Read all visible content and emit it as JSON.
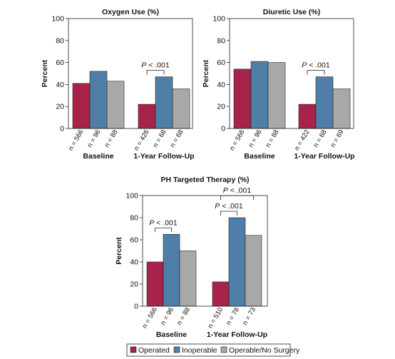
{
  "series_names": [
    "Operated",
    "Inoperable",
    "Operable/No Surgery"
  ],
  "colors": {
    "Operated": "#a8234a",
    "Inoperable": "#4f7fa6",
    "Operable/No Surgery": "#a8a8a8"
  },
  "legend": {
    "items": [
      "Operated",
      "Inoperable",
      "Operable/No Surgery"
    ]
  },
  "chart_data": [
    {
      "type": "bar",
      "title": "Oxygen Use (%)",
      "ylabel": "Percent",
      "ylim": [
        0,
        100
      ],
      "yticks": [
        0,
        20,
        40,
        60,
        80,
        100
      ],
      "categories": [
        "Baseline",
        "1-Year Follow-Up"
      ],
      "series": [
        {
          "name": "Operated",
          "values": [
            41,
            22
          ]
        },
        {
          "name": "Inoperable",
          "values": [
            52,
            47
          ]
        },
        {
          "name": "Operable/No Surgery",
          "values": [
            43,
            36
          ]
        }
      ],
      "n_labels": [
        [
          "n = 566",
          "n = 96",
          "n = 88"
        ],
        [
          "n = 426",
          "n = 68",
          "n = 68"
        ]
      ],
      "annotations": [
        {
          "text": "P < .001",
          "category": 1,
          "from_series": 0,
          "to_series": 1
        }
      ]
    },
    {
      "type": "bar",
      "title": "Diuretic Use (%)",
      "ylabel": "Percent",
      "ylim": [
        0,
        100
      ],
      "yticks": [
        0,
        20,
        40,
        60,
        80,
        100
      ],
      "categories": [
        "Baseline",
        "1-Year Follow-Up"
      ],
      "series": [
        {
          "name": "Operated",
          "values": [
            54,
            22
          ]
        },
        {
          "name": "Inoperable",
          "values": [
            61,
            47
          ]
        },
        {
          "name": "Operable/No Surgery",
          "values": [
            60,
            36
          ]
        }
      ],
      "n_labels": [
        [
          "n = 566",
          "n = 96",
          "n = 88"
        ],
        [
          "n = 422",
          "n = 68",
          "n = 69"
        ]
      ],
      "annotations": [
        {
          "text": "P < .001",
          "category": 1,
          "from_series": 0,
          "to_series": 1
        }
      ]
    },
    {
      "type": "bar",
      "title": "PH Targeted Therapy (%)",
      "ylabel": "Percent",
      "ylim": [
        0,
        100
      ],
      "yticks": [
        0,
        20,
        40,
        60,
        80,
        100
      ],
      "categories": [
        "Baseline",
        "1-Year Follow-Up"
      ],
      "series": [
        {
          "name": "Operated",
          "values": [
            40,
            22
          ]
        },
        {
          "name": "Inoperable",
          "values": [
            65,
            80
          ]
        },
        {
          "name": "Operable/No Surgery",
          "values": [
            50,
            64
          ]
        }
      ],
      "n_labels": [
        [
          "n = 566",
          "n = 96",
          "n = 88"
        ],
        [
          "n = 510",
          "n = 78",
          "n = 73"
        ]
      ],
      "annotations": [
        {
          "text": "P < .001",
          "category": 0,
          "from_series": 0,
          "to_series": 1
        },
        {
          "text": "P < .001",
          "category": 1,
          "from_series": 0,
          "to_series": 1
        },
        {
          "text": "P < .001",
          "category": 1,
          "from_series": 0,
          "to_series": 2
        }
      ]
    }
  ]
}
